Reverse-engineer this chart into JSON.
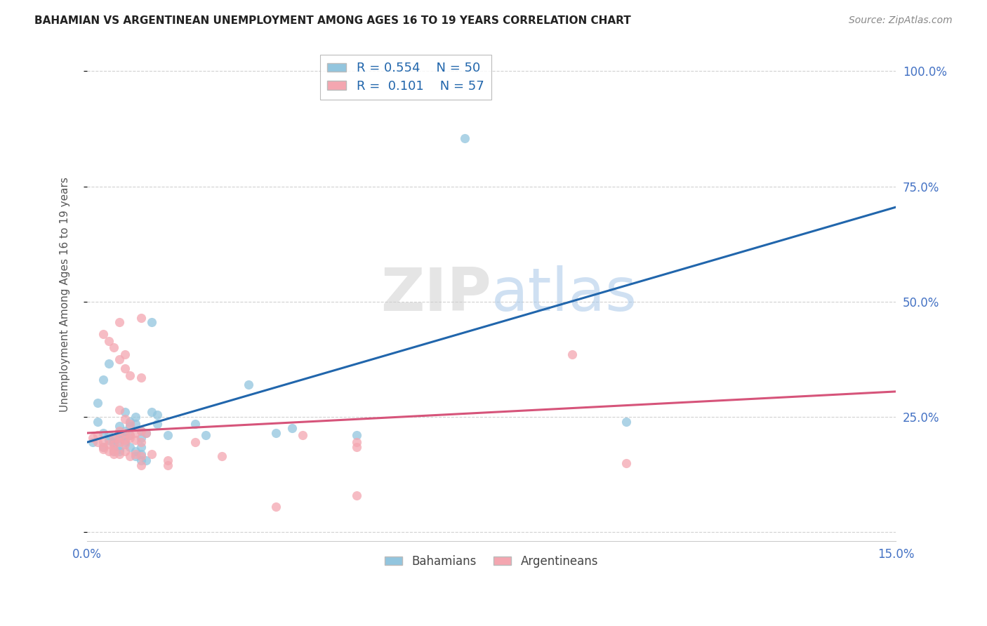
{
  "title": "BAHAMIAN VS ARGENTINEAN UNEMPLOYMENT AMONG AGES 16 TO 19 YEARS CORRELATION CHART",
  "source": "Source: ZipAtlas.com",
  "ylabel": "Unemployment Among Ages 16 to 19 years",
  "xlim": [
    0.0,
    0.15
  ],
  "ylim": [
    -0.02,
    1.05
  ],
  "blue_R": "0.554",
  "blue_N": "50",
  "pink_R": "0.101",
  "pink_N": "57",
  "blue_color": "#92c5de",
  "pink_color": "#f4a6b0",
  "blue_line_color": "#2166ac",
  "pink_line_color": "#d6547a",
  "blue_scatter": [
    [
      0.001,
      0.195
    ],
    [
      0.002,
      0.24
    ],
    [
      0.002,
      0.28
    ],
    [
      0.003,
      0.185
    ],
    [
      0.003,
      0.215
    ],
    [
      0.003,
      0.33
    ],
    [
      0.004,
      0.2
    ],
    [
      0.004,
      0.21
    ],
    [
      0.004,
      0.365
    ],
    [
      0.005,
      0.19
    ],
    [
      0.005,
      0.205
    ],
    [
      0.005,
      0.195
    ],
    [
      0.005,
      0.175
    ],
    [
      0.006,
      0.2
    ],
    [
      0.006,
      0.215
    ],
    [
      0.006,
      0.23
    ],
    [
      0.006,
      0.175
    ],
    [
      0.006,
      0.18
    ],
    [
      0.007,
      0.21
    ],
    [
      0.007,
      0.22
    ],
    [
      0.007,
      0.26
    ],
    [
      0.007,
      0.195
    ],
    [
      0.008,
      0.23
    ],
    [
      0.008,
      0.24
    ],
    [
      0.008,
      0.21
    ],
    [
      0.008,
      0.185
    ],
    [
      0.009,
      0.25
    ],
    [
      0.009,
      0.235
    ],
    [
      0.009,
      0.175
    ],
    [
      0.009,
      0.165
    ],
    [
      0.01,
      0.205
    ],
    [
      0.01,
      0.22
    ],
    [
      0.01,
      0.185
    ],
    [
      0.01,
      0.17
    ],
    [
      0.01,
      0.155
    ],
    [
      0.011,
      0.215
    ],
    [
      0.011,
      0.155
    ],
    [
      0.012,
      0.455
    ],
    [
      0.012,
      0.26
    ],
    [
      0.013,
      0.255
    ],
    [
      0.013,
      0.235
    ],
    [
      0.015,
      0.21
    ],
    [
      0.02,
      0.235
    ],
    [
      0.022,
      0.21
    ],
    [
      0.03,
      0.32
    ],
    [
      0.035,
      0.215
    ],
    [
      0.038,
      0.225
    ],
    [
      0.05,
      0.21
    ],
    [
      0.07,
      0.855
    ],
    [
      0.1,
      0.24
    ]
  ],
  "pink_scatter": [
    [
      0.001,
      0.205
    ],
    [
      0.002,
      0.195
    ],
    [
      0.002,
      0.21
    ],
    [
      0.003,
      0.195
    ],
    [
      0.003,
      0.185
    ],
    [
      0.003,
      0.18
    ],
    [
      0.003,
      0.43
    ],
    [
      0.004,
      0.415
    ],
    [
      0.004,
      0.19
    ],
    [
      0.004,
      0.175
    ],
    [
      0.005,
      0.4
    ],
    [
      0.005,
      0.205
    ],
    [
      0.005,
      0.19
    ],
    [
      0.005,
      0.18
    ],
    [
      0.005,
      0.175
    ],
    [
      0.005,
      0.17
    ],
    [
      0.006,
      0.455
    ],
    [
      0.006,
      0.375
    ],
    [
      0.006,
      0.265
    ],
    [
      0.006,
      0.22
    ],
    [
      0.006,
      0.205
    ],
    [
      0.006,
      0.195
    ],
    [
      0.006,
      0.17
    ],
    [
      0.007,
      0.385
    ],
    [
      0.007,
      0.355
    ],
    [
      0.007,
      0.245
    ],
    [
      0.007,
      0.215
    ],
    [
      0.007,
      0.2
    ],
    [
      0.007,
      0.19
    ],
    [
      0.007,
      0.175
    ],
    [
      0.008,
      0.34
    ],
    [
      0.008,
      0.235
    ],
    [
      0.008,
      0.21
    ],
    [
      0.008,
      0.205
    ],
    [
      0.008,
      0.165
    ],
    [
      0.009,
      0.215
    ],
    [
      0.009,
      0.2
    ],
    [
      0.009,
      0.17
    ],
    [
      0.01,
      0.465
    ],
    [
      0.01,
      0.335
    ],
    [
      0.01,
      0.22
    ],
    [
      0.01,
      0.195
    ],
    [
      0.01,
      0.165
    ],
    [
      0.01,
      0.145
    ],
    [
      0.011,
      0.215
    ],
    [
      0.012,
      0.17
    ],
    [
      0.015,
      0.155
    ],
    [
      0.015,
      0.145
    ],
    [
      0.02,
      0.195
    ],
    [
      0.025,
      0.165
    ],
    [
      0.035,
      0.055
    ],
    [
      0.04,
      0.21
    ],
    [
      0.05,
      0.08
    ],
    [
      0.05,
      0.185
    ],
    [
      0.05,
      0.195
    ],
    [
      0.09,
      0.385
    ],
    [
      0.1,
      0.15
    ]
  ],
  "blue_trendline": [
    [
      0.0,
      0.195
    ],
    [
      0.15,
      0.705
    ]
  ],
  "pink_trendline": [
    [
      0.0,
      0.215
    ],
    [
      0.15,
      0.305
    ]
  ],
  "watermark_zip": "ZIP",
  "watermark_atlas": "atlas",
  "background_color": "#ffffff",
  "grid_color": "#cccccc",
  "title_color": "#222222",
  "source_color": "#888888",
  "ylabel_color": "#555555",
  "tick_color": "#4472c4",
  "legend_text_color": "#2166ac"
}
